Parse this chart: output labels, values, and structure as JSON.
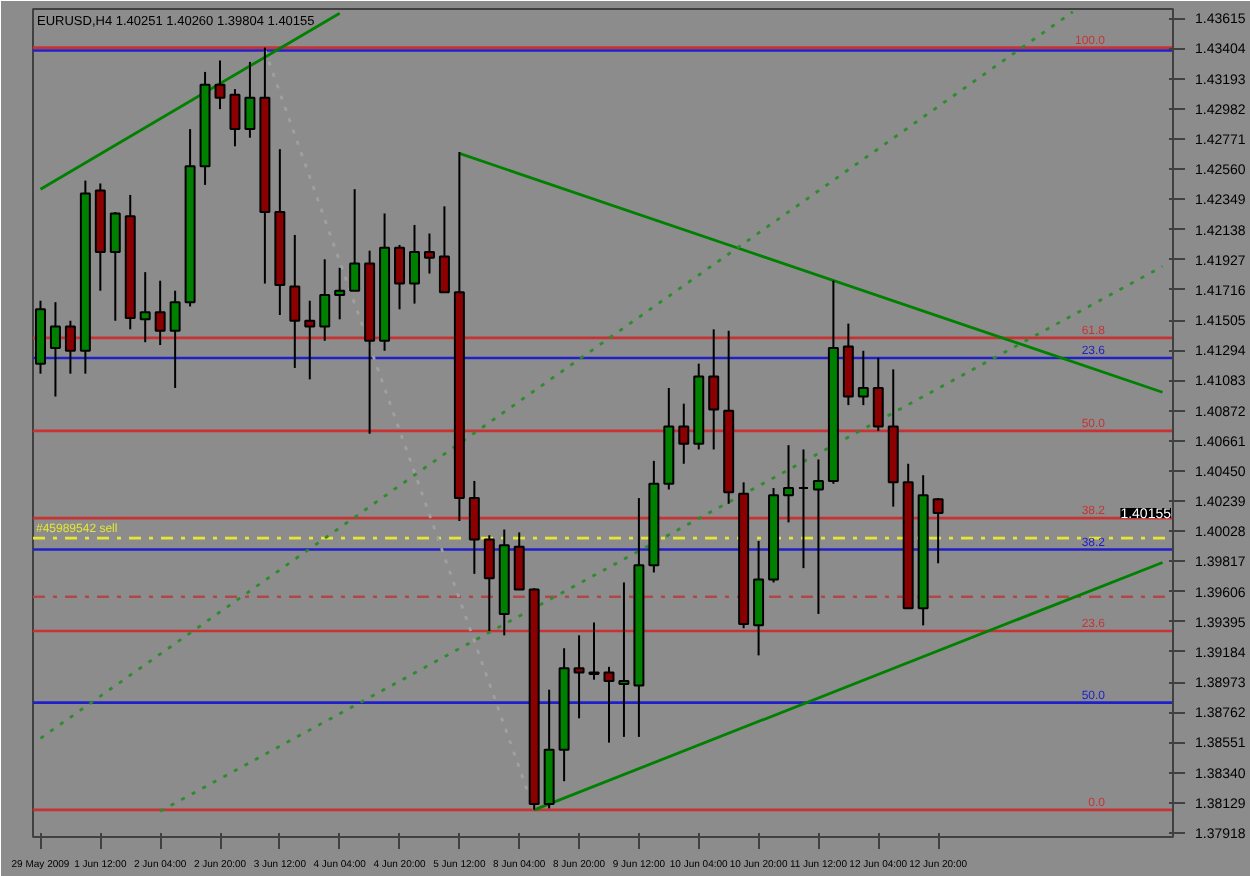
{
  "chart_data": {
    "type": "candlestick",
    "title": "EURUSD,H4  1.40251 1.40260 1.39804 1.40155",
    "categories": [
      "29 May 2009",
      null,
      null,
      null,
      "1 Jun 12:00",
      null,
      null,
      null,
      "2 Jun 04:00",
      null,
      null,
      null,
      "2 Jun 20:00",
      null,
      null,
      null,
      "3 Jun 12:00",
      null,
      null,
      null,
      "4 Jun 04:00",
      null,
      null,
      null,
      "4 Jun 20:00",
      null,
      null,
      null,
      "5 Jun 12:00",
      null,
      null,
      null,
      "8 Jun 04:00",
      null,
      null,
      null,
      "8 Jun 20:00",
      null,
      null,
      null,
      "9 Jun 12:00",
      null,
      null,
      null,
      "10 Jun 04:00",
      null,
      null,
      null,
      "10 Jun 20:00",
      null,
      null,
      null,
      "11 Jun 12:00",
      null,
      null,
      null,
      "12 Jun 04:00",
      null,
      null,
      null,
      "12 Jun 20:00",
      null,
      null,
      null,
      null,
      null,
      null,
      null,
      null,
      null,
      null,
      null,
      null,
      null,
      null,
      null
    ],
    "ohlc": [
      [
        1.412,
        1.4164,
        1.4113,
        1.4158
      ],
      [
        1.4131,
        1.4163,
        1.4097,
        1.4146
      ],
      [
        1.4146,
        1.415,
        1.4113,
        1.4129
      ],
      [
        1.4129,
        1.4248,
        1.4113,
        1.4239
      ],
      [
        1.4241,
        1.4246,
        1.4171,
        1.4198
      ],
      [
        1.4198,
        1.4226,
        1.415,
        1.4225
      ],
      [
        1.4223,
        1.4238,
        1.4144,
        1.4152
      ],
      [
        1.4151,
        1.4184,
        1.4135,
        1.4156
      ],
      [
        1.4156,
        1.4178,
        1.4133,
        1.4143
      ],
      [
        1.4143,
        1.4171,
        1.4103,
        1.4163
      ],
      [
        1.4163,
        1.4284,
        1.416,
        1.4258
      ],
      [
        1.4258,
        1.4324,
        1.4245,
        1.4315
      ],
      [
        1.4315,
        1.4332,
        1.4298,
        1.4306
      ],
      [
        1.4308,
        1.4312,
        1.4272,
        1.4284
      ],
      [
        1.4284,
        1.4331,
        1.4278,
        1.4306
      ],
      [
        1.4306,
        1.4341,
        1.4176,
        1.4226
      ],
      [
        1.4226,
        1.427,
        1.4154,
        1.4175
      ],
      [
        1.4174,
        1.421,
        1.4117,
        1.415
      ],
      [
        1.415,
        1.4164,
        1.4109,
        1.4146
      ],
      [
        1.4146,
        1.4193,
        1.4136,
        1.4168
      ],
      [
        1.4168,
        1.4187,
        1.4151,
        1.4171
      ],
      [
        1.4171,
        1.4242,
        1.4171,
        1.419
      ],
      [
        1.419,
        1.4199,
        1.4071,
        1.4136
      ],
      [
        1.4136,
        1.4225,
        1.4129,
        1.4201
      ],
      [
        1.4201,
        1.4203,
        1.4158,
        1.4176
      ],
      [
        1.4176,
        1.4217,
        1.4162,
        1.4198
      ],
      [
        1.4198,
        1.4211,
        1.4183,
        1.4194
      ],
      [
        1.4195,
        1.423,
        1.417,
        1.417
      ],
      [
        1.417,
        1.4268,
        1.401,
        1.4026
      ],
      [
        1.4026,
        1.4038,
        1.3973,
        1.3997
      ],
      [
        1.3997,
        1.4,
        1.3933,
        1.397
      ],
      [
        1.3945,
        1.4004,
        1.393,
        1.3993
      ],
      [
        1.3992,
        1.4002,
        1.3962,
        1.3962
      ],
      [
        1.3962,
        1.3963,
        1.3808,
        1.3812
      ],
      [
        1.3812,
        1.3892,
        1.3809,
        1.385
      ],
      [
        1.385,
        1.3921,
        1.3828,
        1.3907
      ],
      [
        1.3907,
        1.393,
        1.3872,
        1.3904
      ],
      [
        1.3903,
        1.3939,
        1.3899,
        1.3904
      ],
      [
        1.3904,
        1.3908,
        1.3855,
        1.3898
      ],
      [
        1.3896,
        1.3967,
        1.3859,
        1.3898
      ],
      [
        1.3895,
        1.4026,
        1.3859,
        1.3979
      ],
      [
        1.3979,
        1.4052,
        1.3974,
        1.4036
      ],
      [
        1.4036,
        1.4103,
        1.4032,
        1.4076
      ],
      [
        1.4076,
        1.4092,
        1.405,
        1.4064
      ],
      [
        1.4064,
        1.412,
        1.406,
        1.4111
      ],
      [
        1.4111,
        1.4144,
        1.406,
        1.4088
      ],
      [
        1.4087,
        1.4143,
        1.4022,
        1.403
      ],
      [
        1.4029,
        1.4037,
        1.3935,
        1.3938
      ],
      [
        1.3937,
        1.3996,
        1.3916,
        1.3969
      ],
      [
        1.3969,
        1.4033,
        1.3967,
        1.4028
      ],
      [
        1.4028,
        1.4063,
        1.4009,
        1.4033
      ],
      [
        1.4033,
        1.406,
        1.3977,
        1.4033
      ],
      [
        1.4032,
        1.4053,
        1.3945,
        1.4038
      ],
      [
        1.4038,
        1.4178,
        1.4036,
        1.4131
      ],
      [
        1.4132,
        1.4148,
        1.4091,
        1.4097
      ],
      [
        1.4097,
        1.4129,
        1.4091,
        1.4103
      ],
      [
        1.4103,
        1.4124,
        1.4073,
        1.4076
      ],
      [
        1.4076,
        1.4116,
        1.402,
        1.4037
      ],
      [
        1.4037,
        1.405,
        1.3949,
        1.3949
      ],
      [
        1.3949,
        1.4042,
        1.3937,
        1.4028
      ],
      [
        1.40251,
        1.4026,
        1.39804,
        1.40155
      ],
      null,
      null,
      null,
      null,
      null,
      null,
      null,
      null,
      null,
      null,
      null,
      null,
      null,
      null,
      null
    ],
    "series": [
      {
        "type": "line",
        "color": "#008000",
        "line_style": "solid",
        "values": [
          1.4242,
          null,
          null,
          null,
          null,
          null,
          null,
          null,
          null,
          null,
          null,
          null,
          null,
          null,
          null,
          null,
          null,
          null,
          null,
          null,
          1.4365,
          null,
          null,
          null,
          null,
          null,
          null,
          null,
          null,
          null,
          null,
          null,
          null,
          null,
          null,
          null,
          null,
          null,
          null,
          null,
          null,
          null,
          null,
          null,
          null,
          null,
          null,
          null,
          null,
          null,
          null,
          null,
          null,
          null,
          null,
          null,
          null,
          null,
          null,
          null,
          null,
          null,
          null,
          null,
          null,
          null,
          null,
          null,
          null,
          null,
          null,
          null,
          null,
          null,
          null,
          null
        ]
      },
      {
        "type": "line",
        "color": "#008000",
        "line_style": "solid",
        "values": [
          null,
          null,
          null,
          null,
          null,
          null,
          null,
          null,
          null,
          null,
          null,
          null,
          null,
          null,
          null,
          null,
          null,
          null,
          null,
          null,
          null,
          null,
          null,
          null,
          null,
          null,
          null,
          null,
          1.4267,
          null,
          null,
          null,
          null,
          null,
          null,
          null,
          null,
          null,
          null,
          null,
          null,
          null,
          null,
          null,
          null,
          null,
          null,
          null,
          null,
          null,
          null,
          null,
          null,
          null,
          null,
          null,
          null,
          null,
          null,
          null,
          null,
          null,
          null,
          null,
          null,
          null,
          null,
          null,
          null,
          null,
          null,
          null,
          null,
          null,
          null,
          1.41
        ]
      },
      {
        "type": "line",
        "color": "#008000",
        "line_style": "solid",
        "values": [
          null,
          null,
          null,
          null,
          null,
          null,
          null,
          null,
          null,
          null,
          null,
          null,
          null,
          null,
          null,
          null,
          null,
          null,
          null,
          null,
          null,
          null,
          null,
          null,
          null,
          null,
          null,
          null,
          null,
          null,
          null,
          null,
          null,
          1.3808,
          null,
          null,
          null,
          null,
          null,
          null,
          null,
          null,
          null,
          null,
          null,
          null,
          null,
          null,
          null,
          null,
          null,
          null,
          null,
          null,
          null,
          null,
          null,
          null,
          null,
          null,
          null,
          null,
          null,
          null,
          null,
          null,
          null,
          null,
          null,
          null,
          null,
          null,
          null,
          null,
          null,
          1.3981
        ]
      },
      {
        "type": "line",
        "color": "#2e8b2e",
        "line_style": "dotted",
        "values": [
          1.3858,
          null,
          null,
          null,
          null,
          null,
          null,
          null,
          null,
          null,
          null,
          null,
          null,
          null,
          null,
          null,
          null,
          null,
          null,
          null,
          null,
          null,
          null,
          null,
          null,
          null,
          null,
          null,
          null,
          null,
          null,
          null,
          null,
          null,
          null,
          null,
          null,
          null,
          null,
          null,
          null,
          null,
          null,
          null,
          null,
          null,
          null,
          null,
          null,
          null,
          null,
          null,
          null,
          null,
          null,
          null,
          null,
          null,
          null,
          null,
          null,
          null,
          null,
          null,
          null,
          null,
          null,
          null,
          null,
          1.4366,
          null,
          null,
          null,
          null,
          null,
          null
        ]
      },
      {
        "type": "line",
        "color": "#2e8b2e",
        "line_style": "dotted",
        "values": [
          null,
          null,
          null,
          null,
          null,
          null,
          null,
          null,
          1.3807,
          null,
          null,
          null,
          null,
          null,
          null,
          null,
          null,
          null,
          null,
          null,
          null,
          null,
          null,
          null,
          null,
          null,
          null,
          null,
          null,
          null,
          null,
          null,
          null,
          null,
          null,
          null,
          null,
          null,
          null,
          null,
          null,
          null,
          null,
          null,
          null,
          null,
          null,
          null,
          null,
          null,
          null,
          null,
          null,
          null,
          null,
          null,
          null,
          null,
          null,
          null,
          null,
          null,
          null,
          null,
          null,
          null,
          null,
          null,
          null,
          null,
          null,
          null,
          null,
          null,
          null,
          1.4188
        ]
      },
      {
        "type": "line",
        "color": "#a0a0a0",
        "line_style": "dotted",
        "values": [
          null,
          null,
          null,
          null,
          null,
          null,
          null,
          null,
          null,
          null,
          null,
          null,
          null,
          null,
          null,
          1.4339,
          null,
          null,
          null,
          null,
          null,
          null,
          null,
          null,
          null,
          null,
          null,
          null,
          null,
          null,
          null,
          null,
          null,
          1.3808,
          null,
          null,
          null,
          null,
          null,
          null,
          null,
          null,
          null,
          null,
          null,
          null,
          null,
          null,
          null,
          null,
          null,
          null,
          null,
          null,
          null,
          null,
          null,
          null,
          null,
          null,
          null,
          null,
          null,
          null,
          null,
          null,
          null,
          null,
          null,
          null,
          null,
          null,
          null,
          null,
          null,
          null
        ]
      }
    ],
    "ref_lines": [
      {
        "axis": "y",
        "value": 1.4341,
        "color": "#c83232",
        "line_style": "solid"
      },
      {
        "axis": "y",
        "value": 1.4138,
        "color": "#c83232",
        "line_style": "solid"
      },
      {
        "axis": "y",
        "value": 1.4073,
        "color": "#c83232",
        "line_style": "solid"
      },
      {
        "axis": "y",
        "value": 1.4012,
        "color": "#c83232",
        "line_style": "solid"
      },
      {
        "axis": "y",
        "value": 1.3933,
        "color": "#c83232",
        "line_style": "solid"
      },
      {
        "axis": "y",
        "value": 1.3808,
        "color": "#c83232",
        "line_style": "solid"
      },
      {
        "axis": "y",
        "value": 1.4339,
        "color": "#2020c8",
        "line_style": "solid"
      },
      {
        "axis": "y",
        "value": 1.4124,
        "color": "#2020c8",
        "line_style": "solid"
      },
      {
        "axis": "y",
        "value": 1.399,
        "color": "#2020c8",
        "line_style": "solid"
      },
      {
        "axis": "y",
        "value": 1.3883,
        "color": "#2020c8",
        "line_style": "solid"
      },
      {
        "axis": "y",
        "value": 1.3998,
        "label": "#45989542 sell",
        "color": "#e6e632",
        "line_style": "dashed"
      },
      {
        "axis": "y",
        "value": 1.3957,
        "label": null,
        "color": "#b04848",
        "line_style": "dashed"
      }
    ],
    "annotations": [
      {
        "text": "1.40155",
        "y": 1.40155
      },
      {
        "text": "100.0",
        "y": 1.4341
      },
      {
        "text": "61.8",
        "y": 1.4138
      },
      {
        "text": "50.0",
        "y": 1.4073
      },
      {
        "text": "38.2",
        "y": 1.4012
      },
      {
        "text": "23.6",
        "y": 1.3933
      },
      {
        "text": "0.0",
        "y": 1.3808
      },
      {
        "text": "23.6",
        "y": 1.4124
      },
      {
        "text": "38.2",
        "y": 1.399
      },
      {
        "text": "50.0",
        "y": 1.3883
      }
    ],
    "ylim": [
      1.3789,
      1.4368
    ],
    "yticks": [
      1.37918,
      1.38129,
      {
        "value": 1.3834,
        "label": "1.38340"
      },
      1.38551,
      1.38762,
      1.38973,
      1.39184,
      1.39395,
      1.39606,
      1.39817,
      1.40028,
      1.40239,
      {
        "value": 1.4045,
        "label": "1.40450"
      },
      1.40661,
      1.40872,
      1.41083,
      1.41294,
      1.41505,
      1.41716,
      1.41927,
      1.42138,
      1.42349,
      {
        "value": 1.4256,
        "label": "1.42560"
      },
      1.42771,
      1.42982,
      1.43193,
      1.43404,
      1.43615
    ],
    "grid": false
  }
}
